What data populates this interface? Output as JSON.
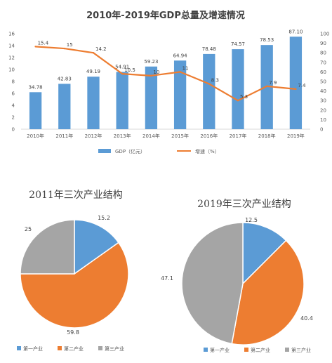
{
  "chart_data": [
    {
      "type": "bar",
      "title": "2010年-2019年GDP总量及增速情况",
      "categories": [
        "2010年",
        "2011年",
        "2012年",
        "2013年",
        "2014年",
        "2015年",
        "2016年",
        "2017年",
        "2018年",
        "2019年"
      ],
      "series": [
        {
          "name": "GDP（亿元）",
          "type": "bar",
          "axis": "left",
          "color": "#5B9BD5",
          "values": [
            6.2,
            7.6,
            8.8,
            9.6,
            10.5,
            11.5,
            12.6,
            13.4,
            14.1,
            15.5
          ],
          "labels": [
            "34.78",
            "42.83",
            "49.19",
            "54.91",
            "59.23",
            "64.94",
            "78.48",
            "74.57",
            "78.53",
            "87.10"
          ]
        },
        {
          "name": "增速（%）",
          "type": "line",
          "axis": "right",
          "color": "#ED7D31",
          "values": [
            86.5,
            84.5,
            80,
            58,
            56,
            60,
            47.5,
            30,
            45,
            42
          ],
          "labels": [
            "15.4",
            "15",
            "14.2",
            "10.5",
            "10",
            "11",
            "8.3",
            "5.3",
            "7.9",
            "7.4"
          ]
        }
      ],
      "ylim_left": [
        0,
        16
      ],
      "yticks_left": [
        "0",
        "2",
        "4",
        "6",
        "8",
        "10",
        "12",
        "14",
        "16"
      ],
      "ylim_right": [
        0,
        100
      ],
      "yticks_right": [
        "0",
        "10",
        "20",
        "30",
        "40",
        "50",
        "60",
        "70",
        "80",
        "90",
        "100"
      ],
      "grid": false,
      "legend_position": "bottom"
    },
    {
      "type": "pie",
      "title": "2011年三次产业结构",
      "categories": [
        "第一产业",
        "第二产业",
        "第三产业"
      ],
      "values": [
        15.2,
        59.8,
        25
      ],
      "labels": [
        "15.2",
        "59.8",
        "25"
      ],
      "colors": [
        "#5B9BD5",
        "#ED7D31",
        "#A5A5A5"
      ],
      "legend_position": "bottom"
    },
    {
      "type": "pie",
      "title": "2019年三次产业结构",
      "categories": [
        "第一产业",
        "第二产业",
        "第三产业"
      ],
      "values": [
        12.5,
        40.4,
        47.1
      ],
      "labels": [
        "12.5",
        "40.4",
        "47.1"
      ],
      "colors": [
        "#5B9BD5",
        "#ED7D31",
        "#A5A5A5"
      ],
      "legend_position": "bottom"
    }
  ]
}
